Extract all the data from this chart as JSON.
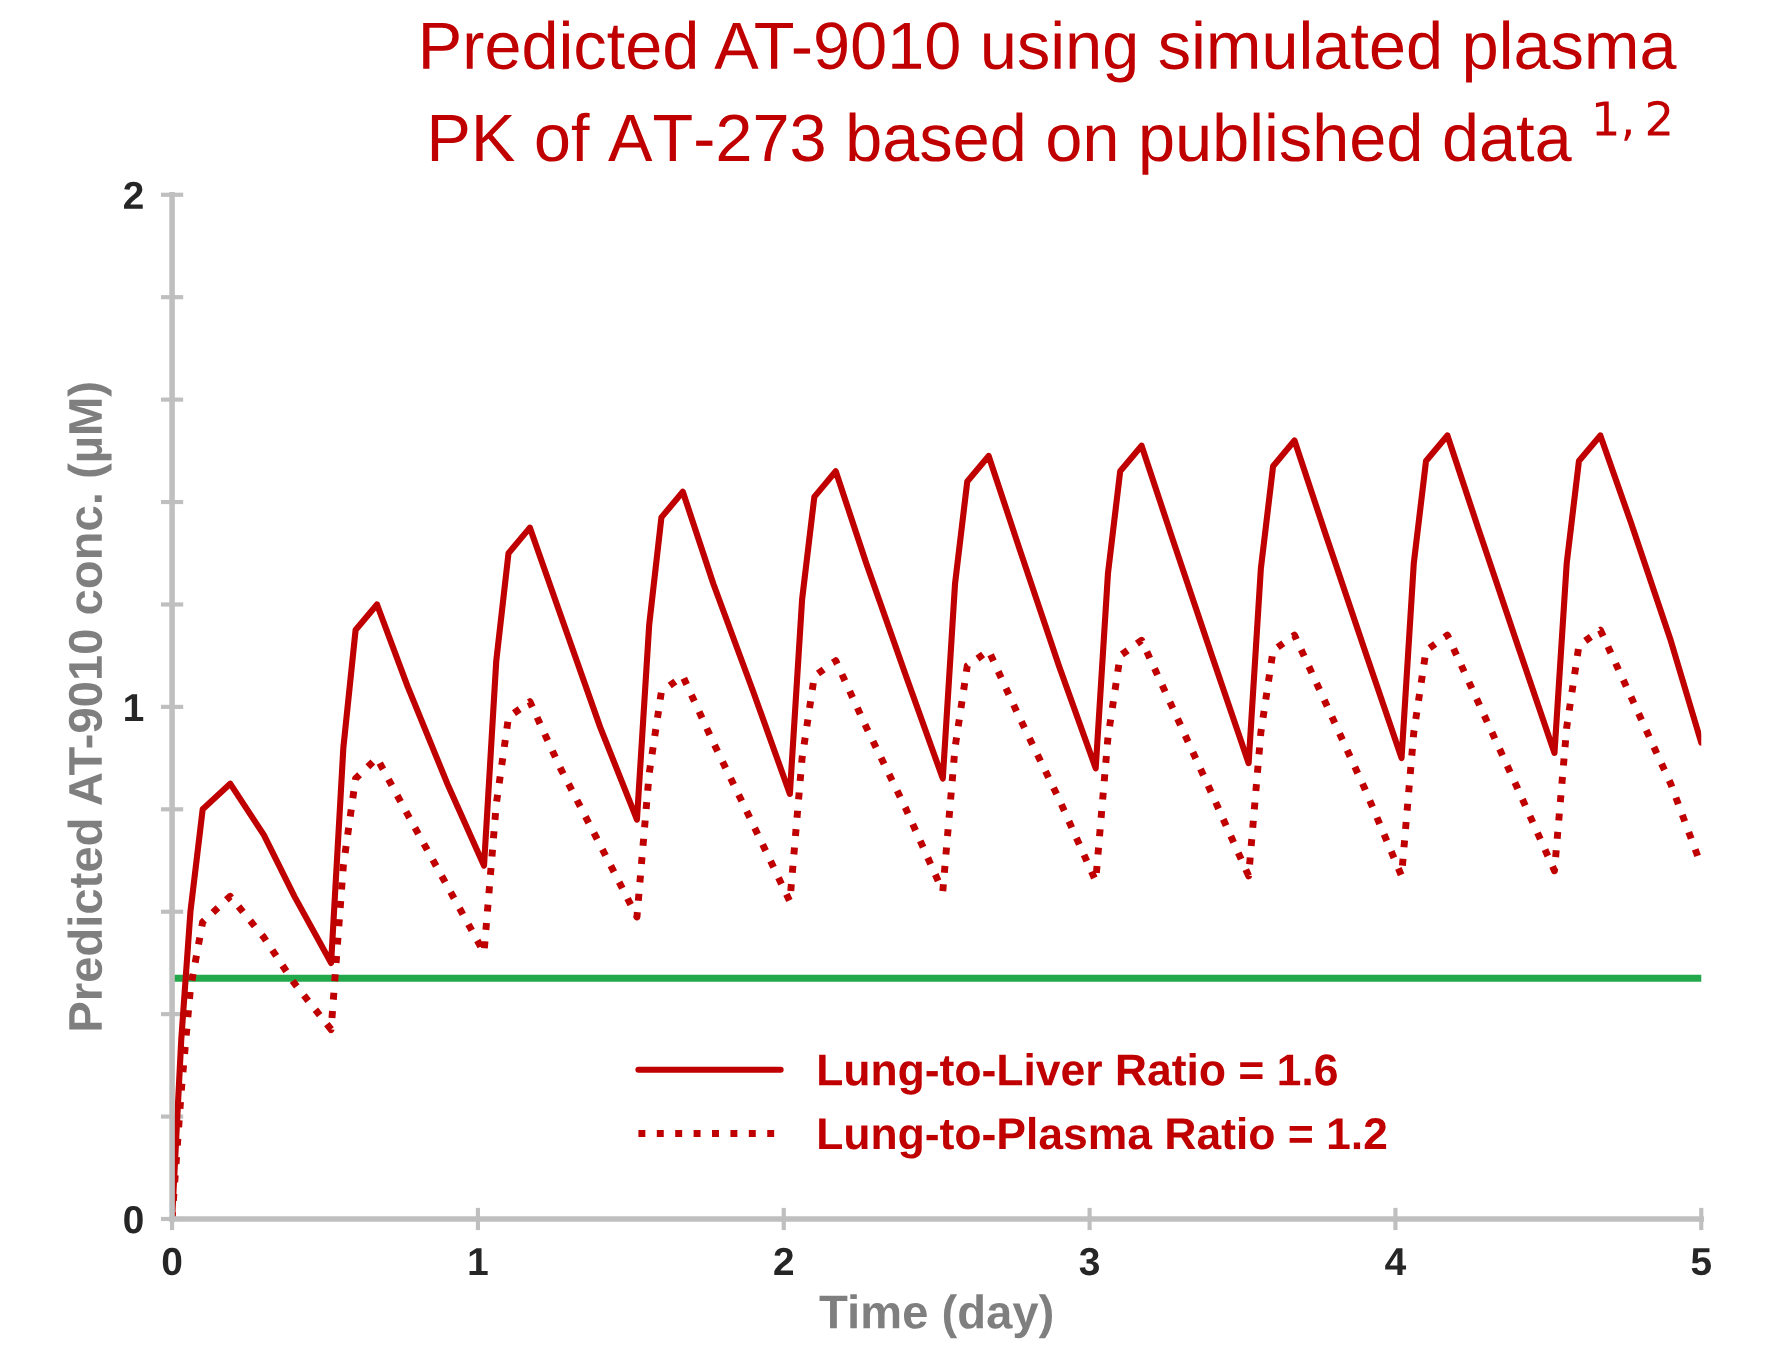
{
  "chart_data": {
    "type": "line",
    "title": "Predicted AT-9010 using simulated plasma\nPK of AT-273 based on published data $^{1,2}$",
    "xlabel": "Time (day)",
    "ylabel": "Predicted AT-9010 conc. (µM)",
    "x": [
      0,
      0.03,
      0.06,
      0.1,
      0.19,
      0.3,
      0.4,
      0.52,
      0.56,
      0.6,
      0.67,
      0.77,
      0.9,
      1.02,
      1.06,
      1.1,
      1.17,
      1.27,
      1.4,
      1.52,
      1.56,
      1.6,
      1.67,
      1.77,
      1.9,
      2.02,
      2.06,
      2.1,
      2.17,
      2.27,
      2.4,
      2.52,
      2.56,
      2.6,
      2.67,
      2.77,
      2.9,
      3.02,
      3.06,
      3.1,
      3.17,
      3.27,
      3.4,
      3.52,
      3.56,
      3.6,
      3.67,
      3.77,
      3.9,
      4.02,
      4.06,
      4.1,
      4.17,
      4.27,
      4.4,
      4.52,
      4.56,
      4.6,
      4.67,
      4.77,
      4.9,
      5.0
    ],
    "series": [
      {
        "name": "Lung-to-Liver Ratio = 1.6",
        "color": "#c00000",
        "line_style": "solid",
        "values": [
          0,
          0.35,
          0.6,
          0.8,
          0.85,
          0.75,
          0.63,
          0.5,
          0.92,
          1.15,
          1.2,
          1.04,
          0.85,
          0.69,
          1.09,
          1.3,
          1.35,
          1.18,
          0.96,
          0.78,
          1.16,
          1.37,
          1.42,
          1.24,
          1.03,
          0.83,
          1.21,
          1.41,
          1.46,
          1.28,
          1.06,
          0.86,
          1.24,
          1.44,
          1.49,
          1.31,
          1.08,
          0.88,
          1.26,
          1.46,
          1.51,
          1.33,
          1.1,
          0.89,
          1.27,
          1.47,
          1.52,
          1.34,
          1.11,
          0.9,
          1.28,
          1.48,
          1.53,
          1.35,
          1.12,
          0.91,
          1.28,
          1.48,
          1.53,
          1.36,
          1.13,
          0.93
        ]
      },
      {
        "name": "Lung-to-Plasma Ratio = 1.2",
        "color": "#c00000",
        "line_style": "dotted",
        "values": [
          0,
          0.25,
          0.45,
          0.58,
          0.63,
          0.55,
          0.46,
          0.37,
          0.69,
          0.86,
          0.9,
          0.79,
          0.65,
          0.52,
          0.81,
          0.98,
          1.01,
          0.88,
          0.73,
          0.59,
          0.87,
          1.03,
          1.06,
          0.93,
          0.77,
          0.62,
          0.9,
          1.06,
          1.09,
          0.96,
          0.8,
          0.64,
          0.92,
          1.08,
          1.11,
          0.98,
          0.82,
          0.66,
          0.94,
          1.1,
          1.13,
          1.0,
          0.83,
          0.67,
          0.95,
          1.11,
          1.14,
          1.01,
          0.84,
          0.67,
          0.95,
          1.11,
          1.14,
          1.01,
          0.84,
          0.68,
          0.96,
          1.12,
          1.15,
          1.02,
          0.85,
          0.69
        ]
      }
    ],
    "ref_lines": [
      {
        "axis": "y",
        "value": 0.47,
        "color": "#22a84a"
      }
    ],
    "xlim": [
      0,
      5
    ],
    "xticks": [
      0,
      1,
      2,
      3,
      4,
      5
    ],
    "ylim": [
      0,
      2
    ],
    "yticks": [
      0,
      {
        "value": 0.2,
        "label": null
      },
      {
        "value": 0.4,
        "label": null
      },
      {
        "value": 0.6,
        "label": null
      },
      {
        "value": 0.8,
        "label": null
      },
      1,
      {
        "value": 1.2,
        "label": null
      },
      {
        "value": 1.4,
        "label": null
      },
      {
        "value": 1.6,
        "label": null
      },
      {
        "value": 1.8,
        "label": null
      },
      2
    ],
    "grid": false,
    "legend": "bottom"
  }
}
